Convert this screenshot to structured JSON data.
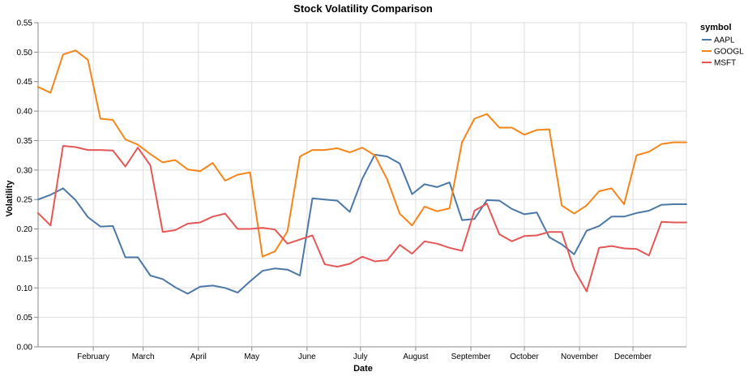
{
  "chart_data": {
    "type": "line",
    "title": "Stock Volatility Comparison",
    "xlabel": "Date",
    "ylabel": "Volatility",
    "ylim": [
      0,
      0.55
    ],
    "yticks": [
      0,
      0.05,
      0.1,
      0.15,
      0.2,
      0.25,
      0.3,
      0.35,
      0.4,
      0.45,
      0.5,
      0.55
    ],
    "ytick_labels": [
      "0.00",
      "0.05",
      "0.10",
      "0.15",
      "0.20",
      "0.25",
      "0.30",
      "0.35",
      "0.40",
      "0.45",
      "0.50",
      "0.55"
    ],
    "xlim": [
      "2023-01-01",
      "2023-12-31"
    ],
    "xticks": [
      {
        "date": "2023-02-01",
        "label": "February"
      },
      {
        "date": "2023-03-01",
        "label": "March"
      },
      {
        "date": "2023-04-01",
        "label": "April"
      },
      {
        "date": "2023-05-01",
        "label": "May"
      },
      {
        "date": "2023-06-01",
        "label": "June"
      },
      {
        "date": "2023-07-01",
        "label": "July"
      },
      {
        "date": "2023-08-01",
        "label": "August"
      },
      {
        "date": "2023-09-01",
        "label": "September"
      },
      {
        "date": "2023-10-01",
        "label": "October"
      },
      {
        "date": "2023-11-01",
        "label": "November"
      },
      {
        "date": "2023-12-01",
        "label": "December"
      }
    ],
    "grid": true,
    "legend_title": "symbol",
    "legend_position": "top-right",
    "x": [
      "2023-01-01",
      "2023-01-08",
      "2023-01-15",
      "2023-01-22",
      "2023-01-29",
      "2023-02-05",
      "2023-02-12",
      "2023-02-19",
      "2023-02-26",
      "2023-03-05",
      "2023-03-12",
      "2023-03-19",
      "2023-03-26",
      "2023-04-02",
      "2023-04-09",
      "2023-04-16",
      "2023-04-23",
      "2023-04-30",
      "2023-05-07",
      "2023-05-14",
      "2023-05-21",
      "2023-05-28",
      "2023-06-04",
      "2023-06-11",
      "2023-06-18",
      "2023-06-25",
      "2023-07-02",
      "2023-07-09",
      "2023-07-16",
      "2023-07-23",
      "2023-07-30",
      "2023-08-06",
      "2023-08-13",
      "2023-08-20",
      "2023-08-27",
      "2023-09-03",
      "2023-09-10",
      "2023-09-17",
      "2023-09-24",
      "2023-10-01",
      "2023-10-08",
      "2023-10-15",
      "2023-10-22",
      "2023-10-29",
      "2023-11-05",
      "2023-11-12",
      "2023-11-19",
      "2023-11-26",
      "2023-12-03",
      "2023-12-10",
      "2023-12-17",
      "2023-12-24",
      "2023-12-31"
    ],
    "series": [
      {
        "name": "AAPL",
        "color": "#4c78a8",
        "values": [
          0.25,
          0.258,
          0.269,
          0.249,
          0.22,
          0.204,
          0.205,
          0.152,
          0.152,
          0.121,
          0.115,
          0.101,
          0.09,
          0.102,
          0.104,
          0.1,
          0.092,
          0.111,
          0.129,
          0.133,
          0.131,
          0.121,
          0.252,
          0.25,
          0.248,
          0.229,
          0.285,
          0.326,
          0.323,
          0.311,
          0.259,
          0.276,
          0.271,
          0.279,
          0.215,
          0.217,
          0.249,
          0.248,
          0.234,
          0.225,
          0.228,
          0.186,
          0.174,
          0.157,
          0.197,
          0.205,
          0.221,
          0.221,
          0.227,
          0.231,
          0.241,
          0.242,
          0.242
        ]
      },
      {
        "name": "GOOGL",
        "color": "#f58518",
        "values": [
          0.441,
          0.431,
          0.496,
          0.503,
          0.487,
          0.387,
          0.385,
          0.352,
          0.343,
          0.327,
          0.313,
          0.317,
          0.301,
          0.298,
          0.312,
          0.282,
          0.292,
          0.296,
          0.153,
          0.162,
          0.196,
          0.323,
          0.334,
          0.334,
          0.337,
          0.33,
          0.338,
          0.325,
          0.284,
          0.226,
          0.206,
          0.238,
          0.23,
          0.235,
          0.347,
          0.387,
          0.395,
          0.372,
          0.372,
          0.36,
          0.368,
          0.369,
          0.24,
          0.226,
          0.24,
          0.264,
          0.269,
          0.242,
          0.325,
          0.331,
          0.344,
          0.347,
          0.347
        ]
      },
      {
        "name": "MSFT",
        "color": "#e45756",
        "values": [
          0.227,
          0.206,
          0.341,
          0.339,
          0.334,
          0.334,
          0.333,
          0.306,
          0.338,
          0.308,
          0.195,
          0.198,
          0.209,
          0.211,
          0.221,
          0.226,
          0.2,
          0.2,
          0.202,
          0.199,
          0.175,
          0.182,
          0.189,
          0.14,
          0.136,
          0.141,
          0.153,
          0.145,
          0.147,
          0.173,
          0.158,
          0.179,
          0.175,
          0.168,
          0.163,
          0.231,
          0.243,
          0.191,
          0.179,
          0.188,
          0.189,
          0.195,
          0.195,
          0.131,
          0.094,
          0.168,
          0.171,
          0.167,
          0.166,
          0.155,
          0.212,
          0.211,
          0.211
        ]
      }
    ]
  }
}
